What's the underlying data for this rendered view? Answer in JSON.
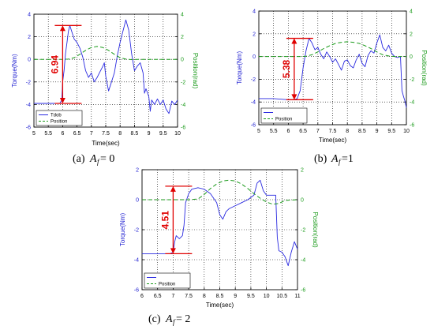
{
  "colors": {
    "torque": "#2a2ae0",
    "position": "#1a9a1a",
    "annotation": "#e00000",
    "grid": "#000000",
    "axis_left": "#1a1ad0",
    "axis_right": "#1a9a1a"
  },
  "chart_data": [
    {
      "type": "line",
      "caption": {
        "prefix": "(a)",
        "var": "A",
        "sub": "f",
        "rest": " = 0"
      },
      "xlabel": "Time(sec)",
      "ylabel_left": "Torque(Nm)",
      "ylabel_right": "Position(rad)",
      "xlim": [
        5,
        10
      ],
      "ylim_left": [
        -6,
        4
      ],
      "ylim_right": [
        -6,
        4
      ],
      "xticks": [
        "5",
        "5.5",
        "6",
        "6.5",
        "7",
        "7.5",
        "8",
        "8.5",
        "9",
        "9.5",
        "10"
      ],
      "yticks_left": [
        "-6",
        "-4",
        "-2",
        "0",
        "2",
        "4"
      ],
      "yticks_right": [
        "-6",
        "-4",
        "-2",
        "0",
        "2",
        "4"
      ],
      "grid": true,
      "legend_position": "bottom-left",
      "legend": [
        "Tdob",
        "Position"
      ],
      "annotation": {
        "text": "6.94",
        "x": 6.0,
        "y_top": 3.0,
        "y_bottom": -3.9
      },
      "series": [
        {
          "name": "Tdob",
          "axis": "left",
          "x": [
            5.0,
            5.5,
            5.9,
            5.97,
            6.0,
            6.05,
            6.1,
            6.15,
            6.2,
            6.25,
            6.3,
            6.4,
            6.5,
            6.6,
            6.7,
            6.8,
            6.9,
            7.0,
            7.1,
            7.2,
            7.3,
            7.4,
            7.45,
            7.5,
            7.6,
            7.7,
            7.8,
            7.9,
            8.0,
            8.1,
            8.2,
            8.3,
            8.4,
            8.5,
            8.6,
            8.7,
            8.8,
            8.85,
            8.9,
            9.0,
            9.05,
            9.1,
            9.2,
            9.3,
            9.4,
            9.5,
            9.6,
            9.7,
            9.8,
            9.9,
            10.0
          ],
          "y": [
            -3.9,
            -3.9,
            -3.9,
            -3.6,
            -2.0,
            -1.0,
            0.5,
            1.5,
            2.5,
            3.0,
            2.6,
            1.8,
            1.5,
            1.0,
            0.2,
            -1.0,
            -1.6,
            -1.2,
            -2.0,
            -1.6,
            -1.1,
            -0.6,
            -0.3,
            -1.5,
            -2.8,
            -2.0,
            -1.2,
            0.3,
            1.5,
            2.5,
            3.5,
            2.6,
            0.5,
            -1.0,
            -0.6,
            -0.3,
            -1.2,
            -3.0,
            -2.6,
            -3.3,
            -4.6,
            -3.6,
            -4.0,
            -3.5,
            -4.0,
            -3.6,
            -4.4,
            -4.8,
            -3.7,
            -4.0,
            -3.6
          ]
        },
        {
          "name": "Position",
          "axis": "right",
          "x": [
            5.0,
            5.5,
            6.0,
            6.2,
            6.4,
            6.6,
            6.8,
            7.0,
            7.2,
            7.4,
            7.6,
            7.8,
            8.0,
            8.2,
            8.4,
            8.6,
            8.8,
            9.0,
            9.5,
            10.0
          ],
          "y": [
            0.0,
            0.0,
            0.0,
            0.02,
            0.15,
            0.45,
            0.8,
            1.05,
            1.15,
            1.05,
            0.8,
            0.45,
            0.15,
            0.02,
            -0.02,
            0.0,
            0.0,
            0.0,
            0.0,
            0.0
          ]
        }
      ]
    },
    {
      "type": "line",
      "caption": {
        "prefix": "(b)",
        "var": "A",
        "sub": "f",
        "rest": " =1"
      },
      "xlabel": "Time(sec)",
      "ylabel_left": "Torque(Nm)",
      "ylabel_right": "Position(rad)",
      "xlim": [
        5,
        10
      ],
      "ylim_left": [
        -6,
        4
      ],
      "ylim_right": [
        -6,
        4
      ],
      "xticks": [
        "5",
        "5.5",
        "6",
        "6.5",
        "7",
        "7.5",
        "8",
        "8.5",
        "9",
        "9.5",
        "10"
      ],
      "yticks_left": [
        "-6",
        "-4",
        "-2",
        "0",
        "2",
        "4"
      ],
      "yticks_right": [
        "-6",
        "-4",
        "-2",
        "0",
        "2",
        "4"
      ],
      "grid": true,
      "legend_position": "bottom-left",
      "legend": [
        "",
        "Position"
      ],
      "annotation": {
        "text": "5.38",
        "x": 6.2,
        "y_top": 1.6,
        "y_bottom": -3.8
      },
      "series": [
        {
          "name": "",
          "axis": "left",
          "x": [
            5.0,
            5.5,
            6.0,
            6.2,
            6.3,
            6.4,
            6.5,
            6.6,
            6.7,
            6.8,
            6.9,
            7.0,
            7.1,
            7.2,
            7.3,
            7.4,
            7.5,
            7.6,
            7.7,
            7.8,
            7.9,
            8.0,
            8.1,
            8.2,
            8.3,
            8.4,
            8.5,
            8.6,
            8.7,
            8.8,
            8.9,
            9.0,
            9.1,
            9.2,
            9.3,
            9.4,
            9.5,
            9.6,
            9.7,
            9.8,
            9.85,
            9.9,
            9.95,
            10.0
          ],
          "y": [
            -3.7,
            -3.7,
            -3.8,
            -3.8,
            -3.7,
            -3.0,
            -1.0,
            0.5,
            1.6,
            1.2,
            0.6,
            0.8,
            0.2,
            -0.2,
            0.4,
            0.0,
            -0.5,
            -0.2,
            -0.7,
            -1.2,
            -0.4,
            -0.3,
            -0.8,
            -1.0,
            -0.3,
            0.2,
            -0.6,
            -0.9,
            0.1,
            0.5,
            0.3,
            1.2,
            1.9,
            0.8,
            0.5,
            1.0,
            0.3,
            0.0,
            -0.1,
            0.0,
            -3.0,
            -3.5,
            -3.9,
            -4.5
          ]
        },
        {
          "name": "Position",
          "axis": "right",
          "x": [
            5.0,
            5.5,
            6.0,
            6.4,
            6.6,
            6.8,
            7.0,
            7.2,
            7.4,
            7.6,
            7.8,
            8.0,
            8.2,
            8.4,
            8.6,
            8.8,
            9.0,
            9.2,
            9.4,
            9.6,
            9.8,
            10.0
          ],
          "y": [
            0.0,
            0.0,
            0.0,
            0.0,
            0.02,
            0.15,
            0.4,
            0.7,
            0.95,
            1.15,
            1.25,
            1.3,
            1.25,
            1.15,
            0.95,
            0.7,
            0.4,
            0.15,
            0.05,
            0.0,
            0.0,
            0.0
          ]
        }
      ]
    },
    {
      "type": "line",
      "caption": {
        "prefix": "(c)",
        "var": "A",
        "sub": "f",
        "rest": " = 2"
      },
      "xlabel": "Time(sec)",
      "ylabel_left": "Torque(Nm)",
      "ylabel_right": "Position(rad)",
      "xlim": [
        6,
        11
      ],
      "ylim_left": [
        -6,
        2
      ],
      "ylim_right": [
        -6,
        2
      ],
      "xticks": [
        "6",
        "6.5",
        "7",
        "7.5",
        "8",
        "8.5",
        "9",
        "9.5",
        "10",
        "10.5",
        "11"
      ],
      "yticks_left": [
        "-6",
        "-4",
        "-2",
        "0",
        "2"
      ],
      "yticks_right": [
        "-6",
        "-4",
        "-2",
        "0",
        "2"
      ],
      "grid": true,
      "legend_position": "bottom-left",
      "legend": [
        "",
        "Position"
      ],
      "annotation": {
        "text": "4.51",
        "x": 7.0,
        "y_top": 0.9,
        "y_bottom": -3.6
      },
      "series": [
        {
          "name": "",
          "axis": "left",
          "x": [
            6.0,
            6.5,
            6.9,
            7.0,
            7.05,
            7.1,
            7.2,
            7.3,
            7.35,
            7.4,
            7.5,
            7.6,
            7.8,
            8.0,
            8.2,
            8.4,
            8.5,
            8.6,
            8.7,
            8.8,
            9.0,
            9.2,
            9.4,
            9.6,
            9.7,
            9.8,
            9.9,
            10.0,
            10.2,
            10.3,
            10.35,
            10.4,
            10.5,
            10.6,
            10.7,
            10.8,
            10.9,
            11.0
          ],
          "y": [
            -3.6,
            -3.6,
            -3.6,
            -3.5,
            -2.8,
            -2.4,
            -2.6,
            -2.4,
            -1.7,
            -0.2,
            0.4,
            0.7,
            0.8,
            0.7,
            0.4,
            -0.2,
            -1.0,
            -1.3,
            -0.8,
            -0.6,
            -0.4,
            -0.2,
            0.0,
            0.3,
            1.1,
            1.3,
            0.6,
            0.3,
            0.3,
            0.3,
            -2.5,
            -3.4,
            -3.5,
            -3.8,
            -4.4,
            -3.5,
            -2.8,
            -3.3
          ]
        },
        {
          "name": "Position",
          "axis": "right",
          "x": [
            6.0,
            6.5,
            7.0,
            7.5,
            7.8,
            8.0,
            8.2,
            8.4,
            8.6,
            8.8,
            9.0,
            9.2,
            9.4,
            9.6,
            9.8,
            10.0,
            10.2,
            10.4,
            10.6,
            11.0
          ],
          "y": [
            0.0,
            0.0,
            0.0,
            0.0,
            0.05,
            0.35,
            0.75,
            1.05,
            1.25,
            1.3,
            1.25,
            1.05,
            0.75,
            0.4,
            0.1,
            -0.15,
            -0.3,
            -0.25,
            -0.05,
            0.0
          ]
        }
      ]
    }
  ]
}
